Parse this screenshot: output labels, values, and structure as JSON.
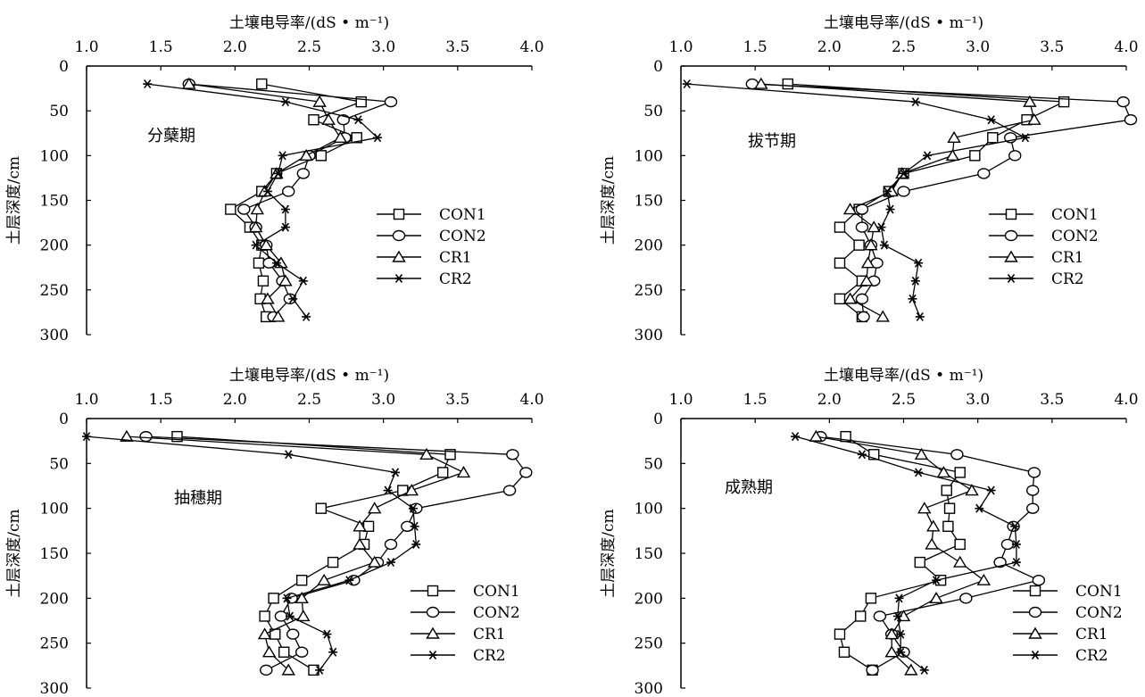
{
  "chart_data": [
    {
      "type": "line",
      "annotation": "分蘖期",
      "xlabel": "土壤电导率/(dS • m⁻¹)",
      "ylabel": "土层深度/cm",
      "xlim": [
        1.0,
        4.0
      ],
      "ylim": [
        0,
        300
      ],
      "xticks": [
        "1.0",
        "1.5",
        "2.0",
        "2.5",
        "3.0",
        "3.5",
        "4.0"
      ],
      "yticks": [
        "0",
        "50",
        "100",
        "150",
        "200",
        "250",
        "300"
      ],
      "legend_position": "right-middle",
      "series": [
        {
          "name": "CON1",
          "marker": "square",
          "x": [
            2.18,
            2.85,
            2.53,
            2.82,
            2.58,
            2.28,
            2.18,
            1.97,
            2.1,
            2.18,
            2.16,
            2.19,
            2.17,
            2.21
          ],
          "y": [
            20,
            40,
            60,
            80,
            100,
            120,
            140,
            160,
            180,
            200,
            220,
            240,
            260,
            280
          ]
        },
        {
          "name": "CON2",
          "marker": "circle",
          "x": [
            1.69,
            3.05,
            2.73,
            2.74,
            2.5,
            2.46,
            2.36,
            2.06,
            2.14,
            2.21,
            2.23,
            2.32,
            2.37,
            2.26
          ],
          "y": [
            20,
            40,
            60,
            80,
            100,
            120,
            140,
            160,
            180,
            200,
            220,
            240,
            260,
            280
          ]
        },
        {
          "name": "CR1",
          "marker": "triangle",
          "x": [
            1.69,
            2.57,
            2.63,
            2.71,
            2.48,
            2.28,
            2.2,
            2.15,
            2.14,
            2.21,
            2.31,
            2.34,
            2.22,
            2.29
          ],
          "y": [
            20,
            40,
            60,
            80,
            100,
            120,
            140,
            160,
            180,
            200,
            220,
            240,
            260,
            280
          ]
        },
        {
          "name": "CR2",
          "marker": "asterisk",
          "x": [
            1.41,
            2.34,
            2.83,
            2.96,
            2.32,
            2.29,
            2.22,
            2.34,
            2.34,
            2.14,
            2.28,
            2.46,
            2.39,
            2.48
          ],
          "y": [
            20,
            40,
            60,
            80,
            100,
            120,
            140,
            160,
            180,
            200,
            220,
            240,
            260,
            280
          ]
        }
      ]
    },
    {
      "type": "line",
      "annotation": "拔节期",
      "xlabel": "土壤电导率/(dS • m⁻¹)",
      "ylabel": "土层深度/cm",
      "xlim": [
        1.0,
        4.0
      ],
      "ylim": [
        0,
        300
      ],
      "xticks": [
        "1.0",
        "1.5",
        "2.0",
        "2.5",
        "3.0",
        "3.5",
        "4.0"
      ],
      "yticks": [
        "0",
        "50",
        "100",
        "150",
        "200",
        "250",
        "300"
      ],
      "legend_position": "right-middle",
      "series": [
        {
          "name": "CON1",
          "marker": "square",
          "x": [
            1.72,
            3.58,
            3.33,
            3.1,
            2.98,
            2.5,
            2.4,
            2.2,
            2.07,
            2.2,
            2.07,
            2.22,
            2.07,
            2.22
          ],
          "y": [
            20,
            40,
            60,
            80,
            100,
            120,
            140,
            160,
            180,
            200,
            220,
            240,
            260,
            280
          ]
        },
        {
          "name": "CON2",
          "marker": "circle",
          "x": [
            1.48,
            3.98,
            4.03,
            3.22,
            3.25,
            3.04,
            2.5,
            2.22,
            2.22,
            2.28,
            2.32,
            2.3,
            2.22,
            2.23
          ],
          "y": [
            20,
            40,
            60,
            80,
            100,
            120,
            140,
            160,
            180,
            200,
            220,
            240,
            260,
            280
          ]
        },
        {
          "name": "CR1",
          "marker": "triangle",
          "x": [
            1.54,
            3.35,
            3.38,
            2.84,
            2.83,
            2.49,
            2.42,
            2.14,
            2.3,
            2.28,
            2.26,
            2.25,
            2.14,
            2.36
          ],
          "y": [
            20,
            40,
            60,
            80,
            100,
            120,
            140,
            160,
            180,
            200,
            220,
            240,
            260,
            280
          ]
        },
        {
          "name": "CR2",
          "marker": "asterisk",
          "x": [
            1.04,
            2.58,
            3.09,
            3.32,
            2.66,
            2.5,
            2.39,
            2.41,
            2.35,
            2.37,
            2.6,
            2.58,
            2.56,
            2.61
          ],
          "y": [
            20,
            40,
            60,
            80,
            100,
            120,
            140,
            160,
            180,
            200,
            220,
            240,
            260,
            280
          ]
        }
      ]
    },
    {
      "type": "line",
      "annotation": "抽穗期",
      "xlabel": "土壤电导率/(dS • m⁻¹)",
      "ylabel": "土层深度/cm",
      "xlim": [
        1.0,
        4.0
      ],
      "ylim": [
        0,
        300
      ],
      "xticks": [
        "1.0",
        "1.5",
        "2.0",
        "2.5",
        "3.0",
        "3.5",
        "4.0"
      ],
      "yticks": [
        "0",
        "50",
        "100",
        "150",
        "200",
        "250",
        "300"
      ],
      "legend_position": "right-bottom",
      "series": [
        {
          "name": "CON1",
          "marker": "square",
          "x": [
            1.61,
            3.45,
            3.4,
            3.13,
            2.58,
            2.9,
            2.87,
            2.66,
            2.45,
            2.26,
            2.2,
            2.27,
            2.33,
            2.53
          ],
          "y": [
            20,
            40,
            60,
            80,
            100,
            120,
            140,
            160,
            180,
            200,
            220,
            240,
            260,
            280
          ]
        },
        {
          "name": "CON2",
          "marker": "circle",
          "x": [
            1.4,
            3.87,
            3.96,
            3.85,
            3.22,
            3.16,
            3.05,
            2.96,
            2.8,
            2.38,
            2.31,
            2.39,
            2.45,
            2.21
          ],
          "y": [
            20,
            40,
            60,
            80,
            100,
            120,
            140,
            160,
            180,
            200,
            220,
            240,
            260,
            280
          ]
        },
        {
          "name": "CR1",
          "marker": "triangle",
          "x": [
            1.27,
            3.29,
            3.54,
            3.19,
            2.94,
            2.84,
            2.84,
            2.94,
            2.6,
            2.45,
            2.46,
            2.2,
            2.23,
            2.36
          ],
          "y": [
            20,
            40,
            60,
            80,
            100,
            120,
            140,
            160,
            180,
            200,
            220,
            240,
            260,
            280
          ]
        },
        {
          "name": "CR2",
          "marker": "asterisk",
          "x": [
            1.0,
            2.36,
            3.08,
            3.03,
            3.2,
            3.21,
            3.22,
            3.05,
            2.77,
            2.35,
            2.37,
            2.62,
            2.66,
            2.57
          ],
          "y": [
            20,
            40,
            60,
            80,
            100,
            120,
            140,
            160,
            180,
            200,
            220,
            240,
            260,
            280
          ]
        }
      ]
    },
    {
      "type": "line",
      "annotation": "成熟期",
      "xlabel": "土壤电导率/(dS • m⁻¹)",
      "ylabel": "土层深度/cm",
      "xlim": [
        1.0,
        4.0
      ],
      "ylim": [
        0,
        300
      ],
      "xticks": [
        "1.0",
        "1.5",
        "2.0",
        "2.5",
        "3.0",
        "3.5",
        "4.0"
      ],
      "yticks": [
        "0",
        "50",
        "100",
        "150",
        "200",
        "250",
        "300"
      ],
      "legend_position": "right-bottom",
      "series": [
        {
          "name": "CON1",
          "marker": "square",
          "x": [
            2.11,
            2.3,
            2.88,
            2.79,
            2.81,
            2.8,
            2.88,
            2.61,
            2.75,
            2.28,
            2.21,
            2.07,
            2.1,
            2.29
          ],
          "y": [
            20,
            40,
            60,
            80,
            100,
            120,
            140,
            160,
            180,
            200,
            220,
            240,
            260,
            280
          ]
        },
        {
          "name": "CON2",
          "marker": "circle",
          "x": [
            1.94,
            2.86,
            3.38,
            3.37,
            3.37,
            3.24,
            3.2,
            3.15,
            3.41,
            2.92,
            2.34,
            2.42,
            2.5,
            2.29
          ],
          "y": [
            20,
            40,
            60,
            80,
            100,
            120,
            140,
            160,
            180,
            200,
            220,
            240,
            260,
            280
          ]
        },
        {
          "name": "CR1",
          "marker": "triangle",
          "x": [
            1.91,
            2.62,
            2.77,
            2.96,
            2.64,
            2.7,
            2.69,
            2.88,
            3.04,
            2.72,
            2.5,
            2.42,
            2.42,
            2.55
          ],
          "y": [
            20,
            40,
            60,
            80,
            100,
            120,
            140,
            160,
            180,
            200,
            220,
            240,
            260,
            280
          ]
        },
        {
          "name": "CR2",
          "marker": "asterisk",
          "x": [
            1.77,
            2.22,
            2.6,
            3.09,
            3.01,
            3.25,
            3.26,
            3.26,
            2.72,
            2.47,
            2.46,
            2.48,
            2.48,
            2.64
          ],
          "y": [
            20,
            40,
            60,
            80,
            100,
            120,
            140,
            160,
            180,
            200,
            220,
            240,
            260,
            280
          ]
        }
      ]
    }
  ]
}
